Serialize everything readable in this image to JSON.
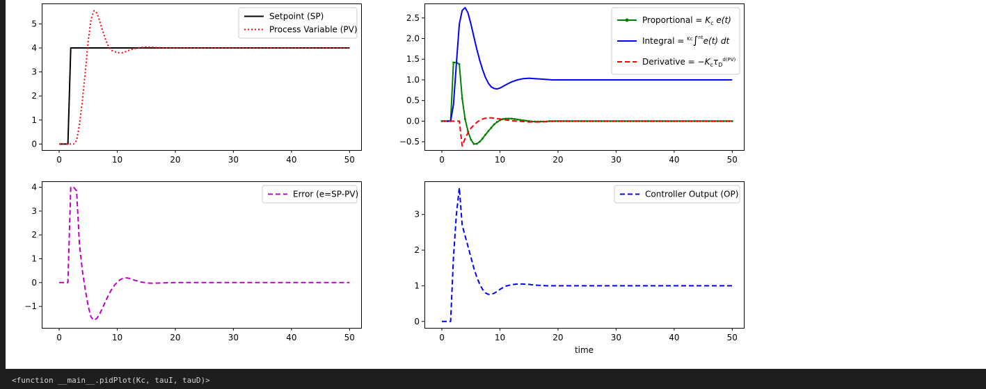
{
  "output_footer": {
    "repr_text": "<function __main__.pidPlot(Kc, tauI, tauD)>"
  },
  "colors": {
    "notebook_bg": "#1e1e1e",
    "plot_bg": "#ffffff",
    "black": "#000000",
    "red": "#ff0000",
    "green": "#008000",
    "blue": "#0000ff",
    "magenta": "#bf00bf"
  },
  "chart_data": [
    {
      "type": "line",
      "title": "",
      "xlabel": "",
      "ylabel": "",
      "xlim": [
        -3,
        52
      ],
      "ylim": [
        -0.25,
        5.85
      ],
      "xticks": [
        0,
        10,
        20,
        30,
        40,
        50
      ],
      "xtick_labels": [
        "0",
        "10",
        "20",
        "30",
        "40",
        "50"
      ],
      "yticks": [
        0,
        1,
        2,
        3,
        4,
        5
      ],
      "ytick_labels": [
        "0",
        "1",
        "2",
        "3",
        "4",
        "5"
      ],
      "grid": false,
      "legend": "top-right",
      "series": [
        {
          "name": "Setpoint (SP)",
          "color": "#000000",
          "style": "solid",
          "x": [
            0,
            1.5,
            2,
            50
          ],
          "y": [
            0,
            0,
            4,
            4
          ]
        },
        {
          "name": "Process Variable (PV)",
          "color": "#ff0000",
          "style": "dotted",
          "x": [
            0,
            2.5,
            3,
            3.5,
            4,
            4.5,
            5,
            5.5,
            6,
            6.5,
            7,
            7.5,
            8,
            8.5,
            9,
            10,
            11,
            12,
            13,
            14,
            15,
            16,
            17,
            18,
            20,
            25,
            30,
            40,
            50
          ],
          "y": [
            0,
            0,
            0.15,
            0.8,
            1.8,
            3.0,
            4.3,
            5.2,
            5.55,
            5.45,
            5.1,
            4.7,
            4.35,
            4.05,
            3.9,
            3.8,
            3.8,
            3.9,
            3.97,
            4.02,
            4.04,
            4.03,
            4.01,
            4.0,
            4.0,
            4.0,
            4.0,
            4.0,
            4.0
          ]
        }
      ]
    },
    {
      "type": "line",
      "title": "",
      "xlabel": "",
      "ylabel": "",
      "xlim": [
        -3,
        52
      ],
      "ylim": [
        -0.7,
        2.85
      ],
      "xticks": [
        0,
        10,
        20,
        30,
        40,
        50
      ],
      "xtick_labels": [
        "0",
        "10",
        "20",
        "30",
        "40",
        "50"
      ],
      "yticks": [
        -0.5,
        0,
        0.5,
        1.0,
        1.5,
        2.0,
        2.5
      ],
      "ytick_labels": [
        "−0.5",
        "0.0",
        "0.5",
        "1.0",
        "1.5",
        "2.0",
        "2.5"
      ],
      "grid": false,
      "legend": "top-right",
      "series": [
        {
          "name": "Proportional = ",
          "name_math": "K_c e(t)",
          "color": "#008000",
          "style": "solid-markers",
          "x": [
            0,
            0.5,
            1,
            1.5,
            2,
            2.5,
            3,
            3.5,
            4,
            4.5,
            5,
            5.5,
            6,
            6.5,
            7,
            7.5,
            8,
            8.5,
            9,
            9.5,
            10,
            10.5,
            11,
            11.5,
            12,
            12.5,
            13,
            13.5,
            14,
            14.5,
            15,
            15.5,
            16,
            16.5,
            17,
            17.5,
            18,
            18.5,
            19,
            19.5,
            20,
            20.5,
            21,
            21.5,
            22,
            22.5,
            23,
            23.5,
            24,
            24.5,
            25,
            25.5,
            26,
            26.5,
            27,
            27.5,
            28,
            28.5,
            29,
            29.5,
            30,
            30.5,
            31,
            31.5,
            32,
            32.5,
            33,
            33.5,
            34,
            34.5,
            35,
            35.5,
            36,
            36.5,
            37,
            37.5,
            38,
            38.5,
            39,
            39.5,
            40,
            40.5,
            41,
            41.5,
            42,
            42.5,
            43,
            43.5,
            44,
            44.5,
            45,
            45.5,
            46,
            46.5,
            47,
            47.5,
            48,
            48.5,
            49,
            49.5,
            50
          ],
          "y": [
            0,
            0,
            0,
            0,
            1.42,
            1.42,
            1.38,
            0.55,
            0.05,
            -0.25,
            -0.45,
            -0.55,
            -0.55,
            -0.5,
            -0.42,
            -0.33,
            -0.24,
            -0.16,
            -0.08,
            -0.02,
            0.02,
            0.05,
            0.06,
            0.06,
            0.06,
            0.05,
            0.04,
            0.03,
            0.02,
            0.01,
            0.0,
            -0.01,
            -0.01,
            -0.01,
            -0.01,
            -0.01,
            -0.01,
            0,
            0,
            0,
            0,
            0,
            0,
            0,
            0,
            0,
            0,
            0,
            0,
            0,
            0,
            0,
            0,
            0,
            0,
            0,
            0,
            0,
            0,
            0,
            0,
            0,
            0,
            0,
            0,
            0,
            0,
            0,
            0,
            0,
            0,
            0,
            0,
            0,
            0,
            0,
            0,
            0,
            0,
            0,
            0,
            0,
            0,
            0,
            0,
            0,
            0,
            0,
            0,
            0,
            0,
            0,
            0,
            0,
            0,
            0,
            0,
            0,
            0,
            0,
            0
          ]
        },
        {
          "name": "Integral = ",
          "name_math": "Kc/τI ∫ e(t) dt",
          "color": "#0000ff",
          "style": "solid",
          "x": [
            0,
            1.5,
            2,
            2.5,
            3,
            3.5,
            4,
            4.5,
            5,
            5.5,
            6,
            6.5,
            7,
            7.5,
            8,
            8.5,
            9,
            9.5,
            10,
            10.5,
            11,
            12,
            13,
            14,
            15,
            16,
            17,
            18,
            19,
            20,
            25,
            30,
            40,
            50
          ],
          "y": [
            0,
            0,
            0.4,
            1.4,
            2.35,
            2.68,
            2.75,
            2.62,
            2.35,
            2.05,
            1.75,
            1.48,
            1.25,
            1.06,
            0.92,
            0.83,
            0.79,
            0.78,
            0.8,
            0.84,
            0.88,
            0.95,
            1.0,
            1.03,
            1.04,
            1.03,
            1.02,
            1.01,
            1.0,
            1.0,
            1.0,
            1.0,
            1.0,
            1.0
          ]
        },
        {
          "name": "Derivative = ",
          "name_math": "−Kc τD d(PV)/dt",
          "color": "#ff0000",
          "style": "dashed",
          "x": [
            0,
            2.5,
            3,
            3.5,
            4,
            4.5,
            5,
            5.5,
            6,
            6.5,
            7,
            7.5,
            8,
            8.5,
            9,
            10,
            11,
            12,
            13,
            14,
            15,
            16,
            17,
            18,
            20,
            30,
            40,
            50
          ],
          "y": [
            0,
            0,
            0,
            -0.6,
            -0.42,
            -0.28,
            -0.17,
            -0.1,
            -0.03,
            0.02,
            0.05,
            0.07,
            0.08,
            0.08,
            0.07,
            0.05,
            0.03,
            0.01,
            0.0,
            -0.01,
            -0.02,
            -0.02,
            -0.02,
            -0.01,
            0,
            0,
            0,
            0
          ]
        }
      ]
    },
    {
      "type": "line",
      "title": "",
      "xlabel": "",
      "ylabel": "",
      "xlim": [
        -3,
        52
      ],
      "ylim": [
        -1.9,
        4.25
      ],
      "xticks": [
        0,
        10,
        20,
        30,
        40,
        50
      ],
      "xtick_labels": [
        "0",
        "10",
        "20",
        "30",
        "40",
        "50"
      ],
      "yticks": [
        -1,
        0,
        1,
        2,
        3,
        4
      ],
      "ytick_labels": [
        "−1",
        "0",
        "1",
        "2",
        "3",
        "4"
      ],
      "grid": false,
      "legend": "top-right",
      "series": [
        {
          "name": "Error (e=SP-PV)",
          "color": "#bf00bf",
          "style": "dashed",
          "x": [
            0,
            1.5,
            2,
            2.5,
            3,
            3.5,
            4,
            4.5,
            5,
            5.5,
            6,
            6.5,
            7,
            7.5,
            8,
            8.5,
            9,
            9.5,
            10,
            10.5,
            11,
            11.5,
            12,
            12.5,
            13,
            14,
            15,
            16,
            17,
            18,
            20,
            25,
            30,
            40,
            50
          ],
          "y": [
            0,
            0,
            4.0,
            4.0,
            3.85,
            1.6,
            0.5,
            -0.3,
            -1.0,
            -1.45,
            -1.58,
            -1.5,
            -1.3,
            -1.05,
            -0.78,
            -0.52,
            -0.3,
            -0.12,
            0.02,
            0.12,
            0.18,
            0.2,
            0.18,
            0.14,
            0.1,
            0.03,
            -0.01,
            -0.03,
            -0.02,
            -0.01,
            0,
            0,
            0,
            0,
            0
          ]
        }
      ]
    },
    {
      "type": "line",
      "title": "",
      "xlabel": "time",
      "ylabel": "",
      "xlim": [
        -3,
        52
      ],
      "ylim": [
        -0.18,
        3.93
      ],
      "xticks": [
        0,
        10,
        20,
        30,
        40,
        50
      ],
      "xtick_labels": [
        "0",
        "10",
        "20",
        "30",
        "40",
        "50"
      ],
      "yticks": [
        0,
        1,
        2,
        3
      ],
      "ytick_labels": [
        "0",
        "1",
        "2",
        "3"
      ],
      "grid": false,
      "legend": "top-right",
      "series": [
        {
          "name": "Controller Output (OP)",
          "color": "#0000ff",
          "style": "dashed",
          "x": [
            0,
            1.5,
            2,
            2.5,
            3,
            3.5,
            4,
            4.5,
            5,
            5.5,
            6,
            6.5,
            7,
            7.5,
            8,
            8.5,
            9,
            9.5,
            10,
            10.5,
            11,
            12,
            13,
            14,
            15,
            16,
            17,
            18,
            19,
            20,
            25,
            30,
            40,
            50
          ],
          "y": [
            0,
            0,
            1.8,
            3.0,
            3.75,
            2.7,
            2.4,
            2.1,
            1.8,
            1.5,
            1.25,
            1.05,
            0.9,
            0.8,
            0.76,
            0.76,
            0.79,
            0.84,
            0.9,
            0.95,
            0.99,
            1.03,
            1.05,
            1.05,
            1.04,
            1.02,
            1.01,
            1.0,
            1.0,
            1.0,
            1.0,
            1.0,
            1.0,
            1.0
          ]
        }
      ]
    }
  ]
}
